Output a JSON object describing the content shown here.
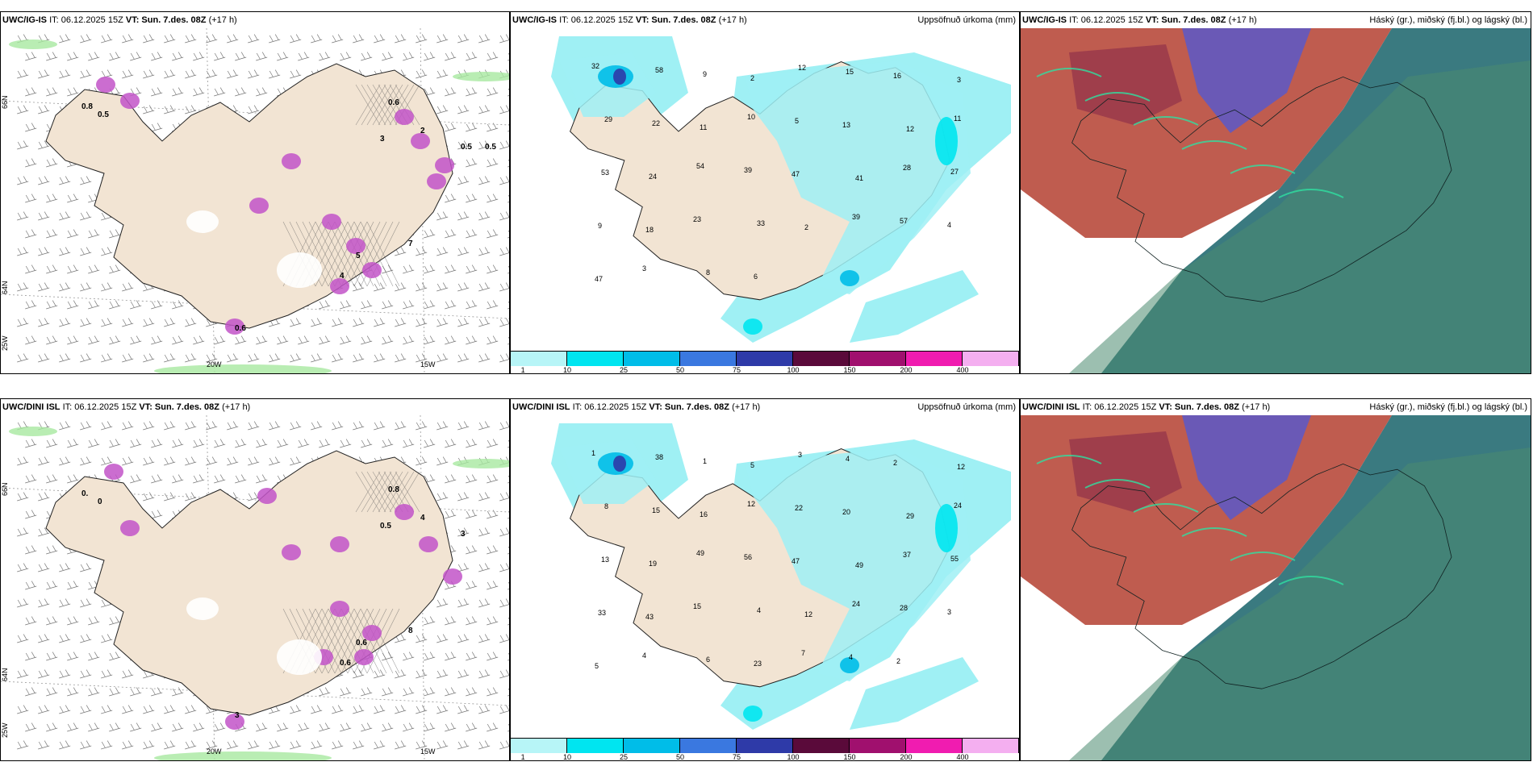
{
  "common": {
    "run": "IT: 06.12.2025 15Z",
    "valid": "VT: Sun. 7.des. 08Z",
    "lead": "(+17 h)"
  },
  "rows": [
    {
      "model": "UWC/IG-IS",
      "precip_numbers": [
        "32",
        "58",
        "9",
        "2",
        "12",
        "15",
        "16",
        "3",
        "29",
        "22",
        "11",
        "10",
        "5",
        "13",
        "12",
        "11",
        "53",
        "24",
        "54",
        "39",
        "47",
        "41",
        "28",
        "27",
        "9",
        "18",
        "23",
        "33",
        "2",
        "39",
        "57",
        "4",
        "47",
        "3",
        "8",
        "6"
      ],
      "wind_labels": [
        "0.8",
        "0.5",
        "0.6",
        "2",
        "3",
        "0.5",
        "7",
        "5",
        "4",
        "0.6",
        "0.5"
      ]
    },
    {
      "model": "UWC/DINI ISL",
      "precip_numbers": [
        "1",
        "38",
        "1",
        "5",
        "3",
        "4",
        "2",
        "12",
        "8",
        "15",
        "16",
        "12",
        "22",
        "20",
        "29",
        "24",
        "13",
        "19",
        "49",
        "56",
        "47",
        "49",
        "37",
        "55",
        "33",
        "43",
        "15",
        "4",
        "12",
        "24",
        "28",
        "3",
        "5",
        "4",
        "6",
        "23",
        "7",
        "4",
        "2"
      ],
      "wind_labels": [
        "0.",
        "0",
        "0.8",
        "4",
        "0.5",
        "3",
        "8",
        "0.6",
        "0.6",
        "3"
      ]
    }
  ],
  "precip_panel": {
    "title_right": "Uppsöfnuð úrkoma (mm)",
    "legend_ticks": [
      "1",
      "10",
      "25",
      "50",
      "75",
      "100",
      "150",
      "200",
      "400"
    ],
    "legend_colors": [
      "#b7f5f7",
      "#00e5f0",
      "#00bde8",
      "#3a78e0",
      "#2e3aa8",
      "#5a0a3a",
      "#a0106e",
      "#f01cb0",
      "#f4aff0"
    ]
  },
  "cloud_panel": {
    "title_right": "Háský (gr.), miðský (fj.bl.) og lágský (bl.)"
  },
  "wind_panel": {
    "lon_labels": [
      "20W",
      "15W"
    ],
    "lat_labels": [
      "66N",
      "64N",
      "25W",
      "66N",
      "64N"
    ]
  },
  "colors": {
    "land": "#f2e4d3",
    "sea": "#ffffff",
    "cyan": "#9ff0f4",
    "magenta": "#c254c8",
    "green": "#a8e8a0",
    "cloud_teal": "#3a7a80",
    "cloud_red": "#b84a3c",
    "cloud_blue": "#5a58c8"
  }
}
